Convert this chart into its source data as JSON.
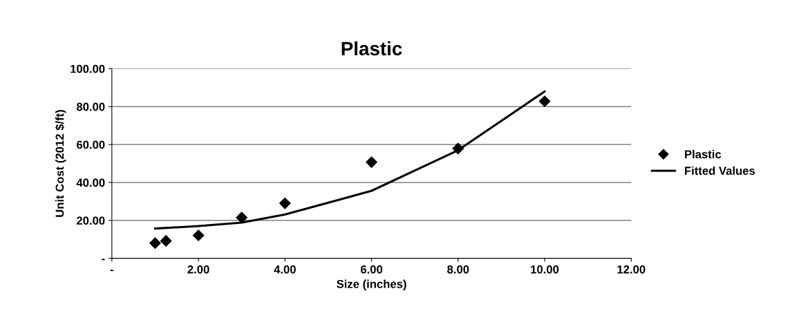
{
  "chart_data": {
    "type": "scatter",
    "title": "Plastic",
    "xlabel": "Size (inches)",
    "ylabel": "Unit Cost (2012 $/ft)",
    "series": [
      {
        "name": "Plastic",
        "color": "#000000",
        "marker": "diamond",
        "x": [
          1,
          1.25,
          2,
          3,
          4,
          6,
          8,
          10
        ],
        "values": [
          8.0,
          9.2,
          12.1,
          21.5,
          29.0,
          50.7,
          57.9,
          82.8
        ]
      },
      {
        "name": "Fitted Values",
        "type": "line",
        "color": "#000000",
        "marker": "none",
        "line_style": "solid",
        "x": [
          1,
          2,
          3,
          4,
          6,
          8,
          10
        ],
        "values": [
          15.7,
          17.0,
          18.8,
          23.1,
          35.6,
          57.0,
          88.0
        ]
      }
    ],
    "xlim": [
      0,
      12
    ],
    "xticks": [
      {
        "value": 0,
        "label": "-"
      },
      {
        "value": 2,
        "label": "2.00"
      },
      {
        "value": 4,
        "label": "4.00"
      },
      {
        "value": 6,
        "label": "6.00"
      },
      {
        "value": 8,
        "label": "8.00"
      },
      {
        "value": 10,
        "label": "10.00"
      },
      {
        "value": 12,
        "label": "12.00"
      }
    ],
    "ylim": [
      0,
      100
    ],
    "yticks": [
      {
        "value": 0,
        "label": "-"
      },
      {
        "value": 20,
        "label": "20.00"
      },
      {
        "value": 40,
        "label": "40.00"
      },
      {
        "value": 60,
        "label": "60.00"
      },
      {
        "value": 80,
        "label": "80.00"
      },
      {
        "value": 100,
        "label": "100.00"
      }
    ],
    "grid": "y",
    "legend": "right"
  }
}
